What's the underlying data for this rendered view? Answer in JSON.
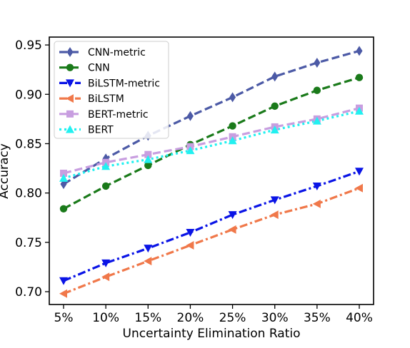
{
  "chart_data": {
    "type": "line",
    "xlabel": "Uncertainty Elimination Ratio",
    "ylabel": "Accuracy",
    "categories": [
      "5%",
      "10%",
      "15%",
      "20%",
      "25%",
      "30%",
      "35%",
      "40%"
    ],
    "ylim": [
      0.687,
      0.958
    ],
    "yticks": [
      0.7,
      0.75,
      0.8,
      0.85,
      0.9,
      0.95
    ],
    "ytick_labels": [
      "0.70",
      "0.75",
      "0.80",
      "0.85",
      "0.90",
      "0.95"
    ],
    "grid": false,
    "legend_position": "top-left",
    "series": [
      {
        "name": "CNN-metric",
        "color": "#4c5aa6",
        "linestyle": "dashed",
        "marker": "thin-diamond",
        "values": [
          0.809,
          0.835,
          0.858,
          0.878,
          0.897,
          0.918,
          0.932,
          0.944
        ]
      },
      {
        "name": "CNN",
        "color": "#1a7a1a",
        "linestyle": "dashed",
        "marker": "circle",
        "values": [
          0.784,
          0.807,
          0.828,
          0.849,
          0.868,
          0.888,
          0.904,
          0.917
        ]
      },
      {
        "name": "BiLSTM-metric",
        "color": "#0a14e6",
        "linestyle": "dashdot",
        "marker": "triangle-down",
        "values": [
          0.711,
          0.729,
          0.744,
          0.76,
          0.778,
          0.793,
          0.807,
          0.822
        ]
      },
      {
        "name": "BiLSTM",
        "color": "#f0784a",
        "linestyle": "dashdot",
        "marker": "triangle-left",
        "values": [
          0.698,
          0.715,
          0.731,
          0.747,
          0.763,
          0.778,
          0.789,
          0.805
        ]
      },
      {
        "name": "BERT-metric",
        "color": "#c89ee0",
        "linestyle": "dashed",
        "marker": "square",
        "values": [
          0.82,
          0.831,
          0.839,
          0.847,
          0.857,
          0.867,
          0.875,
          0.886
        ]
      },
      {
        "name": "BERT",
        "color": "#22f0f0",
        "linestyle": "dotted",
        "marker": "triangle-up",
        "values": [
          0.815,
          0.827,
          0.834,
          0.843,
          0.853,
          0.864,
          0.873,
          0.883
        ]
      }
    ]
  }
}
